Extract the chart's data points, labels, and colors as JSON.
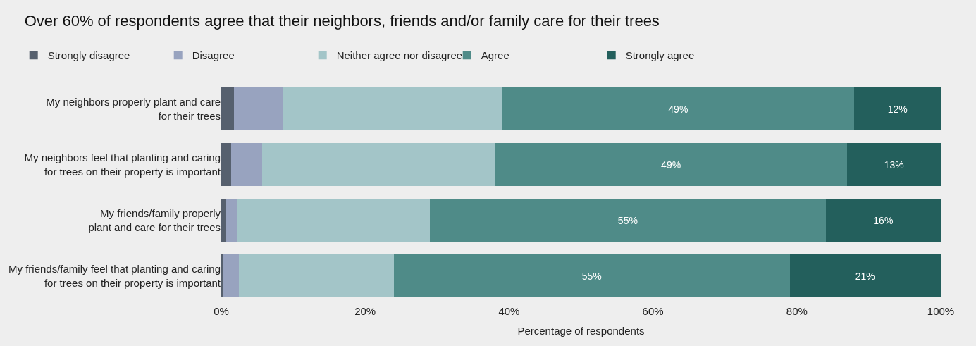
{
  "chart_data": {
    "type": "bar",
    "orientation": "horizontal",
    "stacked": true,
    "title": "Over 60% of respondents agree that their neighbors, friends and/or family care for their trees",
    "xlabel": "Percentage of respondents",
    "categories": [
      "My neighbors properly plant and care\nfor their trees",
      "My neighbors feel that planting and caring\nfor trees on their property is important",
      "My friends/family properly\nplant and care for their trees",
      "My friends/family feel that planting and caring\nfor trees on their property is important"
    ],
    "series": [
      {
        "name": "Strongly disagree",
        "color": "#56606e",
        "values": [
          1.8,
          1.4,
          0.6,
          0.3
        ]
      },
      {
        "name": "Disagree",
        "color": "#98a3bf",
        "values": [
          6.8,
          4.3,
          1.6,
          2.1
        ]
      },
      {
        "name": "Neither agree nor disagree",
        "color": "#a3c5c8",
        "values": [
          30.4,
          32.3,
          26.8,
          21.6
        ]
      },
      {
        "name": "Agree",
        "color": "#4f8b88",
        "values": [
          49,
          49,
          55,
          55
        ],
        "value_labels": [
          "49%",
          "49%",
          "55%",
          "55%"
        ]
      },
      {
        "name": "Strongly agree",
        "color": "#235f5c",
        "values": [
          12,
          13,
          16,
          21
        ],
        "value_labels": [
          "12%",
          "13%",
          "16%",
          "21%"
        ]
      }
    ],
    "xlim": [
      0,
      100
    ],
    "xticks": [
      {
        "value": 0,
        "label": "0%"
      },
      {
        "value": 20,
        "label": "20%"
      },
      {
        "value": 40,
        "label": "40%"
      },
      {
        "value": 60,
        "label": "60%"
      },
      {
        "value": 80,
        "label": "80%"
      },
      {
        "value": 100,
        "label": "100%"
      }
    ],
    "grid": false,
    "legend": "top left"
  }
}
